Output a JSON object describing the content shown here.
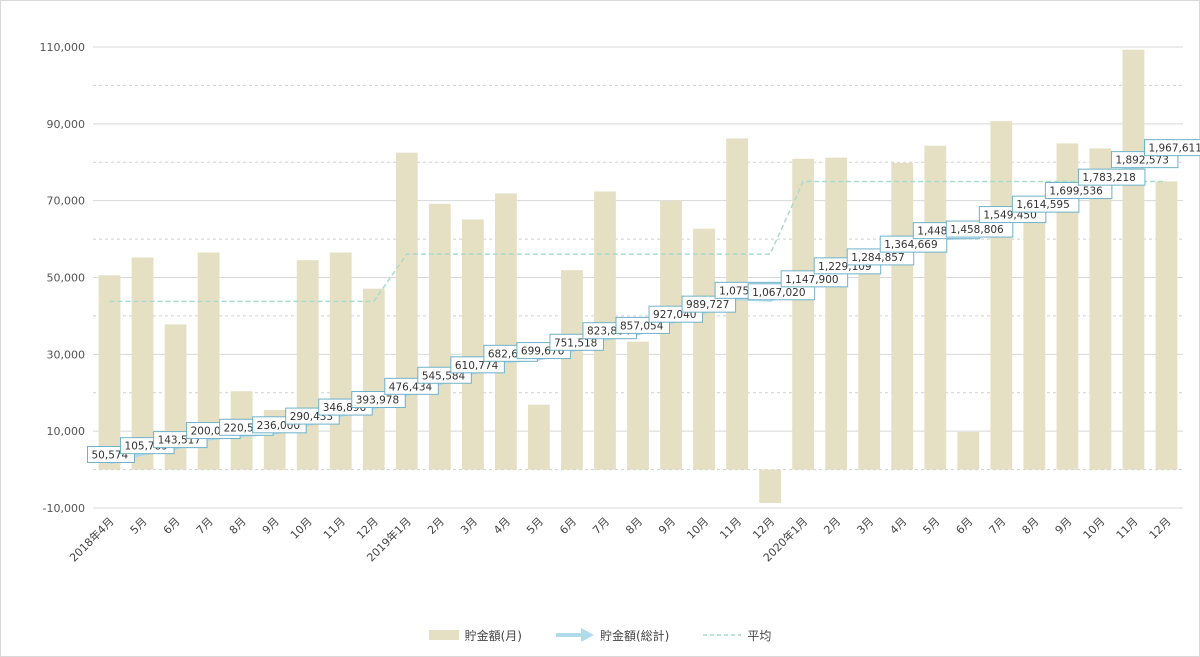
{
  "chart_data": {
    "type": "bar",
    "categories": [
      "2018年4月",
      "5月",
      "6月",
      "7月",
      "8月",
      "9月",
      "10月",
      "11月",
      "12月",
      "2019年1月",
      "2月",
      "3月",
      "4月",
      "5月",
      "6月",
      "7月",
      "8月",
      "9月",
      "10月",
      "11月",
      "12月",
      "2020年1月",
      "2月",
      "3月",
      "4月",
      "5月",
      "6月",
      "7月",
      "8月",
      "9月",
      "10月",
      "11月",
      "12月"
    ],
    "ylim": [
      -10000,
      110000
    ],
    "yticks": [
      "110,000",
      "90,000",
      "70,000",
      "50,000",
      "30,000",
      "10,000",
      "-10,000"
    ],
    "ytick_values": [
      110000,
      90000,
      70000,
      50000,
      30000,
      10000,
      -10000
    ],
    "grid_dashed": [
      100000,
      80000,
      60000,
      40000,
      20000,
      0
    ],
    "series": [
      {
        "name": "貯金額(月)",
        "type": "bar",
        "color": "#e5dfc4",
        "values": [
          50574,
          55200,
          37800,
          56500,
          20400,
          15500,
          54500,
          56500,
          47100,
          82500,
          69200,
          65100,
          71900,
          16900,
          51900,
          72400,
          33300,
          70000,
          62700,
          86200,
          -8700,
          80900,
          81200,
          55600,
          79800,
          84300,
          9800,
          90700,
          65100,
          84900,
          83600,
          109300,
          75000
        ]
      },
      {
        "name": "貯金額(総計)",
        "type": "arrow-line",
        "color": "#b1dbe8",
        "scale_divisor": 24,
        "values": [
          50574,
          105789,
          143517,
          200052,
          220523,
          236000,
          290433,
          346896,
          393978,
          476434,
          545584,
          610774,
          682649,
          699676,
          751518,
          823864,
          857054,
          927040,
          989727,
          1075966,
          1067020,
          1147900,
          1229109,
          1284857,
          1364669,
          1448916,
          1458806,
          1549450,
          1614595,
          1699536,
          1783218,
          1892573,
          1967611
        ],
        "labels": [
          "50,574",
          "105,789",
          "143,517",
          "200,052",
          "220,523",
          "236,000",
          "290,433",
          "346,896",
          "393,978",
          "476,434",
          "545,584",
          "610,774",
          "682,649",
          "699,676",
          "751,518",
          "823,864",
          "857,054",
          "927,040",
          "989,727",
          "1,075,966",
          "1,067,020",
          "1,147,900",
          "1,229,109",
          "1,284,857",
          "1,364,669",
          "1,448,916",
          "1,458,806",
          "1,549,450",
          "1,614,595",
          "1,699,536",
          "1,783,218",
          "1,892,573",
          "1,967,611"
        ]
      },
      {
        "name": "平均",
        "type": "dashed-step",
        "color": "#a8dccb",
        "values": [
          43800,
          43800,
          43800,
          43800,
          43800,
          43800,
          43800,
          43800,
          43800,
          56100,
          56100,
          56100,
          56100,
          56100,
          56100,
          56100,
          56100,
          56100,
          56100,
          56100,
          56100,
          75000,
          75000,
          75000,
          75000,
          75000,
          75000,
          75000,
          75000,
          75000,
          75000,
          75000,
          75000
        ]
      }
    ],
    "grid": true,
    "legend": "bottom-center"
  }
}
